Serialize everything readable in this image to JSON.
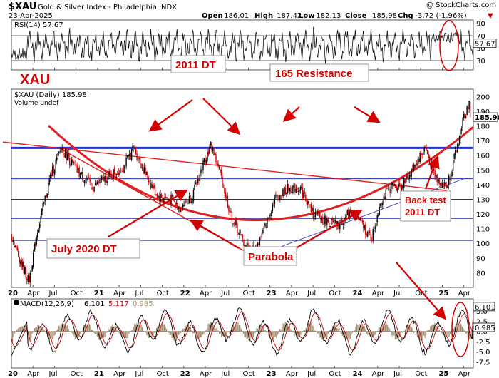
{
  "header": {
    "symbol": "$XAU",
    "name": "Gold & Silver Index - Philadelphia INDX",
    "date": "23-Apr-2025",
    "watermark": "@ StockCharts.com",
    "ohlc": [
      {
        "label": "Open",
        "value": "186.01"
      },
      {
        "label": "High",
        "value": "187.42"
      },
      {
        "label": "Low",
        "value": "182.13"
      },
      {
        "label": "Close",
        "value": "185.98"
      },
      {
        "label": "Chg",
        "value": "-3.72 (-1.96%)"
      }
    ],
    "down_arrow": "▼"
  },
  "chart_data": [
    {
      "type": "line",
      "name": "rsi-panel",
      "legend": "RSI(14) 57.67",
      "current_value": "57.67",
      "yticks": [
        30,
        50,
        70,
        90
      ],
      "ylim": [
        15,
        95
      ],
      "levels": [
        30,
        70
      ],
      "series_summary": {
        "min": 25,
        "max": 85,
        "last": 57.67
      }
    },
    {
      "type": "candlestick",
      "name": "price-panel",
      "legend": "$XAU (Daily) 185.98",
      "volume_legend": "Volume undef",
      "current_value": "185.98",
      "yticks": [
        80,
        90,
        100,
        110,
        120,
        130,
        140,
        150,
        160,
        170,
        180,
        190,
        200
      ],
      "ylim": [
        70,
        205
      ],
      "x_ticks": [
        "20",
        "Apr",
        "Jul",
        "Oct",
        "21",
        "Apr",
        "Jul",
        "Oct",
        "22",
        "Apr",
        "Jul",
        "Oct",
        "23",
        "Apr",
        "Jul",
        "Oct",
        "24",
        "Apr",
        "Jul",
        "Oct",
        "25",
        "Apr"
      ],
      "approx_path": [
        {
          "x": 2020.0,
          "y": 105
        },
        {
          "x": 2020.08,
          "y": 92
        },
        {
          "x": 2020.2,
          "y": 74
        },
        {
          "x": 2020.3,
          "y": 108
        },
        {
          "x": 2020.45,
          "y": 145
        },
        {
          "x": 2020.58,
          "y": 165
        },
        {
          "x": 2020.75,
          "y": 150
        },
        {
          "x": 2020.95,
          "y": 138
        },
        {
          "x": 2021.1,
          "y": 145
        },
        {
          "x": 2021.3,
          "y": 152
        },
        {
          "x": 2021.42,
          "y": 165
        },
        {
          "x": 2021.55,
          "y": 148
        },
        {
          "x": 2021.7,
          "y": 132
        },
        {
          "x": 2021.85,
          "y": 130
        },
        {
          "x": 2021.95,
          "y": 124
        },
        {
          "x": 2022.1,
          "y": 132
        },
        {
          "x": 2022.25,
          "y": 158
        },
        {
          "x": 2022.32,
          "y": 167
        },
        {
          "x": 2022.42,
          "y": 148
        },
        {
          "x": 2022.55,
          "y": 118
        },
        {
          "x": 2022.7,
          "y": 100
        },
        {
          "x": 2022.82,
          "y": 94
        },
        {
          "x": 2022.95,
          "y": 112
        },
        {
          "x": 2023.05,
          "y": 130
        },
        {
          "x": 2023.2,
          "y": 137
        },
        {
          "x": 2023.35,
          "y": 138
        },
        {
          "x": 2023.5,
          "y": 120
        },
        {
          "x": 2023.65,
          "y": 115
        },
        {
          "x": 2023.8,
          "y": 112
        },
        {
          "x": 2023.95,
          "y": 123
        },
        {
          "x": 2024.1,
          "y": 110
        },
        {
          "x": 2024.18,
          "y": 103
        },
        {
          "x": 2024.28,
          "y": 128
        },
        {
          "x": 2024.4,
          "y": 138
        },
        {
          "x": 2024.55,
          "y": 140
        },
        {
          "x": 2024.7,
          "y": 155
        },
        {
          "x": 2024.8,
          "y": 165
        },
        {
          "x": 2024.92,
          "y": 145
        },
        {
          "x": 2025.05,
          "y": 138
        },
        {
          "x": 2025.15,
          "y": 160
        },
        {
          "x": 2025.25,
          "y": 186
        },
        {
          "x": 2025.31,
          "y": 196
        },
        {
          "x": 2025.33,
          "y": 185.98
        }
      ],
      "horizontal_levels": [
        165,
        144,
        130,
        117,
        102
      ],
      "resistance_level": 165,
      "trendlines": [
        {
          "name": "2011-dt-line",
          "from": {
            "x": 2019.9,
            "y": 169
          },
          "to": {
            "x": 2025.05,
            "y": 136
          }
        },
        {
          "name": "july-2020-dt-line",
          "from": {
            "x": 2020.55,
            "y": 165
          },
          "to": {
            "x": 2022.82,
            "y": 91
          }
        },
        {
          "name": "uptrend-line",
          "from": {
            "x": 2022.82,
            "y": 91
          },
          "to": {
            "x": 2025.25,
            "y": 144
          }
        }
      ]
    },
    {
      "type": "line",
      "name": "macd-panel",
      "legend": {
        "label": "MACD(12,26,9)",
        "macd": "6.101",
        "signal": "5.117",
        "hist": "0.985"
      },
      "current_values": [
        "6.101",
        "0.985"
      ],
      "yticks": [
        5.0,
        2.5,
        0.0,
        -2.5,
        -5.0,
        -7.5
      ],
      "ylim": [
        -9,
        8
      ]
    }
  ],
  "annotations": {
    "xau": "XAU",
    "dt2011": "2011 DT",
    "resistance165": "165 Resistance",
    "july2020": "July 2020 DT",
    "parabola": "Parabola",
    "backtest_line1": "Back test",
    "backtest_line2": "2011 DT"
  },
  "colors": {
    "annotation": "#d40000",
    "grid_blue": "#1c2fa0",
    "resistance_blue": "#2233cc",
    "trendline_red": "#e02020",
    "up_candle": "#000000",
    "down_candle": "#cc0000",
    "macd_line": "#000000",
    "signal_line": "#cc0000",
    "histogram": "#a08a6a"
  }
}
